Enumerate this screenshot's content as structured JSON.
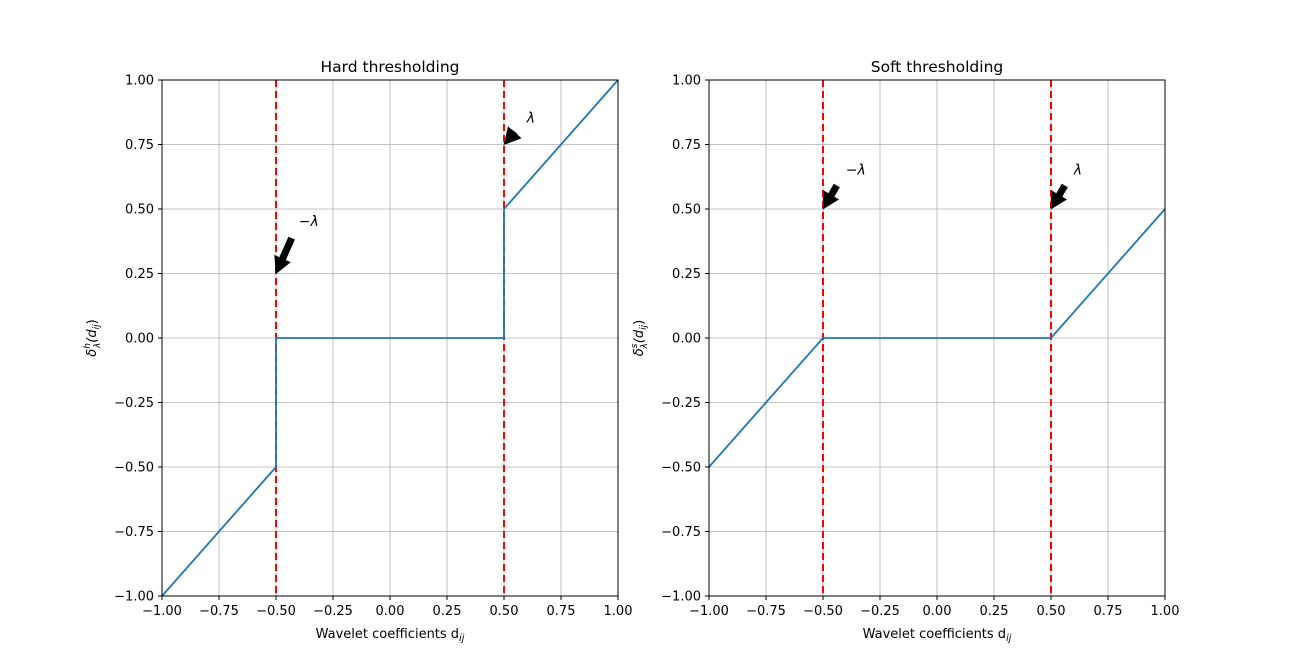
{
  "chart_data": [
    {
      "type": "line",
      "title": "Hard thresholding",
      "xlabel": "Wavelet coefficients d",
      "xlabel_sub": "ij",
      "ylabel": "δ",
      "ylabel_sub": "λ",
      "ylabel_sup": "h",
      "ylabel_arg": "(d",
      "ylabel_arg_sub": "ij",
      "ylabel_close": ")",
      "xlim": [
        -1.0,
        1.0
      ],
      "ylim": [
        -1.0,
        1.0
      ],
      "xticks": [
        "−1.00",
        "−0.75",
        "−0.50",
        "−0.25",
        "0.00",
        "0.25",
        "0.50",
        "0.75",
        "1.00"
      ],
      "yticks": [
        "−1.00",
        "−0.75",
        "−0.50",
        "−0.25",
        "0.00",
        "0.25",
        "0.50",
        "0.75",
        "1.00"
      ],
      "grid": true,
      "series": [
        {
          "color": "#1f77b4",
          "points": [
            [
              -1.0,
              -1.0
            ],
            [
              -0.5,
              -0.5
            ],
            [
              -0.5,
              0.0
            ],
            [
              0.5,
              0.0
            ],
            [
              0.5,
              0.5
            ],
            [
              1.0,
              1.0
            ]
          ]
        }
      ],
      "vlines": [
        {
          "x": -0.5,
          "color": "#ff0000",
          "style": "dashed"
        },
        {
          "x": 0.5,
          "color": "#ff0000",
          "style": "dashed"
        }
      ],
      "annotations": [
        {
          "text": "−λ",
          "xy": [
            -0.5,
            0.25
          ],
          "xytext": [
            -0.4,
            0.45
          ]
        },
        {
          "text": "λ",
          "xy": [
            0.5,
            0.75
          ],
          "xytext": [
            0.6,
            0.85
          ]
        }
      ]
    },
    {
      "type": "line",
      "title": "Soft thresholding",
      "xlabel": "Wavelet coefficients d",
      "xlabel_sub": "ij",
      "ylabel": "δ",
      "ylabel_sub": "λ",
      "ylabel_sup": "s",
      "ylabel_arg": "(d",
      "ylabel_arg_sub": "ij",
      "ylabel_close": ")",
      "xlim": [
        -1.0,
        1.0
      ],
      "ylim": [
        -1.0,
        1.0
      ],
      "xticks": [
        "−1.00",
        "−0.75",
        "−0.50",
        "−0.25",
        "0.00",
        "0.25",
        "0.50",
        "0.75",
        "1.00"
      ],
      "yticks": [
        "−1.00",
        "−0.75",
        "−0.50",
        "−0.25",
        "0.00",
        "0.25",
        "0.50",
        "0.75",
        "1.00"
      ],
      "grid": true,
      "series": [
        {
          "color": "#1f77b4",
          "points": [
            [
              -1.0,
              -0.5
            ],
            [
              -0.5,
              0.0
            ],
            [
              0.5,
              0.0
            ],
            [
              1.0,
              0.5
            ]
          ]
        }
      ],
      "vlines": [
        {
          "x": -0.5,
          "color": "#ff0000",
          "style": "dashed"
        },
        {
          "x": 0.5,
          "color": "#ff0000",
          "style": "dashed"
        }
      ],
      "annotations": [
        {
          "text": "−λ",
          "xy": [
            -0.5,
            0.5
          ],
          "xytext": [
            -0.4,
            0.65
          ]
        },
        {
          "text": "λ",
          "xy": [
            0.5,
            0.5
          ],
          "xytext": [
            0.6,
            0.65
          ]
        }
      ]
    }
  ]
}
